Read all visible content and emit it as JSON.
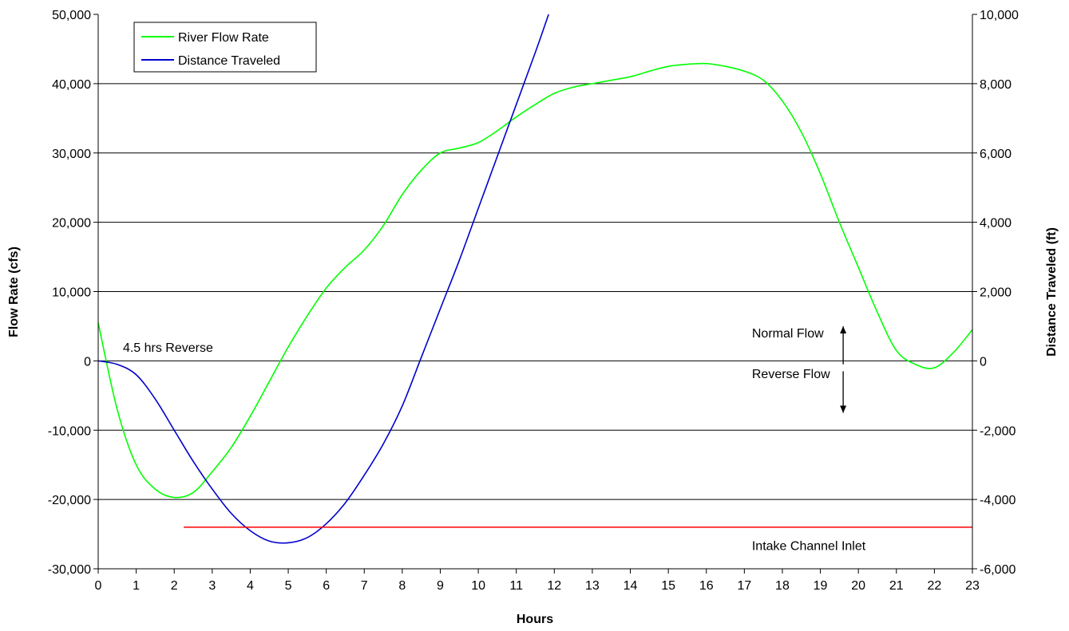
{
  "chart_data": {
    "type": "line",
    "title": "",
    "xlabel": "Hours",
    "ylabel_left": "Flow Rate (cfs)",
    "ylabel_right": "Distance Traveled (ft)",
    "xlim": [
      0,
      23
    ],
    "ylim_left": [
      -30000,
      50000
    ],
    "ylim_right": [
      -6000,
      10000
    ],
    "x_ticks": [
      "0",
      "1",
      "2",
      "3",
      "4",
      "5",
      "6",
      "7",
      "8",
      "9",
      "10",
      "11",
      "12",
      "13",
      "14",
      "15",
      "16",
      "17",
      "18",
      "19",
      "20",
      "21",
      "22",
      "23"
    ],
    "y_ticks_left": [
      "50,000",
      "40,000",
      "30,000",
      "20,000",
      "10,000",
      "0",
      "-10,000",
      "-20,000",
      "-30,000"
    ],
    "y_ticks_right": [
      "10,000",
      "8,000",
      "6,000",
      "4,000",
      "2,000",
      "0",
      "-2,000",
      "-4,000",
      "-6,000"
    ],
    "grid": "horizontal",
    "legend_position": "top-left",
    "series": [
      {
        "name": "River Flow Rate",
        "axis": "left",
        "color": "#00ff00",
        "x": [
          0,
          0.5,
          1,
          1.5,
          2,
          2.5,
          3,
          3.5,
          4,
          4.5,
          5,
          5.5,
          6,
          6.5,
          7,
          7.5,
          8,
          8.5,
          9,
          9.5,
          10,
          10.5,
          11,
          11.5,
          12,
          12.5,
          13,
          13.5,
          14,
          14.5,
          15,
          15.5,
          16,
          16.5,
          17,
          17.5,
          18,
          18.5,
          19,
          19.5,
          20,
          20.5,
          21,
          21.5,
          22,
          22.5,
          23
        ],
        "values": [
          5500,
          -7000,
          -15000,
          -18500,
          -19700,
          -19000,
          -16000,
          -12500,
          -8000,
          -3000,
          2000,
          6500,
          10500,
          13500,
          16000,
          19500,
          24000,
          27500,
          30000,
          30700,
          31500,
          33200,
          35200,
          37000,
          38600,
          39500,
          40000,
          40500,
          41000,
          41800,
          42500,
          42800,
          42900,
          42500,
          41800,
          40500,
          37500,
          33000,
          27000,
          20000,
          13500,
          7000,
          1500,
          -500,
          -1000,
          1200,
          4500
        ]
      },
      {
        "name": "Distance Traveled",
        "axis": "right",
        "color": "#0000cc",
        "x": [
          0,
          0.5,
          1,
          1.5,
          2,
          2.5,
          3,
          3.5,
          4,
          4.5,
          5,
          5.5,
          6,
          6.5,
          7,
          7.5,
          8,
          8.5,
          9,
          9.5,
          10,
          10.5,
          11,
          11.5,
          11.85
        ],
        "values": [
          0,
          -100,
          -400,
          -1100,
          -2000,
          -2900,
          -3700,
          -4400,
          -4900,
          -5200,
          -5250,
          -5100,
          -4700,
          -4100,
          -3300,
          -2400,
          -1300,
          100,
          1500,
          2900,
          4400,
          5900,
          7400,
          8900,
          10000
        ]
      },
      {
        "name": "",
        "axis": "left",
        "color": "#ff0000",
        "x": [
          2.25,
          23
        ],
        "values": [
          -24000,
          -24000
        ]
      }
    ],
    "annotations": [
      {
        "text": "4.5 hrs Reverse",
        "x": 0.65,
        "y": 1300
      },
      {
        "text": "Normal Flow",
        "x": 17.2,
        "y": 3400
      },
      {
        "text": "Reverse Flow",
        "x": 17.2,
        "y": -2500
      },
      {
        "text": "Intake Channel Inlet",
        "x": 17.2,
        "y": -27300
      }
    ],
    "arrows": [
      {
        "direction": "up",
        "x": 19.6,
        "y_from": -500,
        "y_to": 5000
      },
      {
        "direction": "down",
        "x": 19.6,
        "y_from": -1500,
        "y_to": -7500
      }
    ]
  }
}
